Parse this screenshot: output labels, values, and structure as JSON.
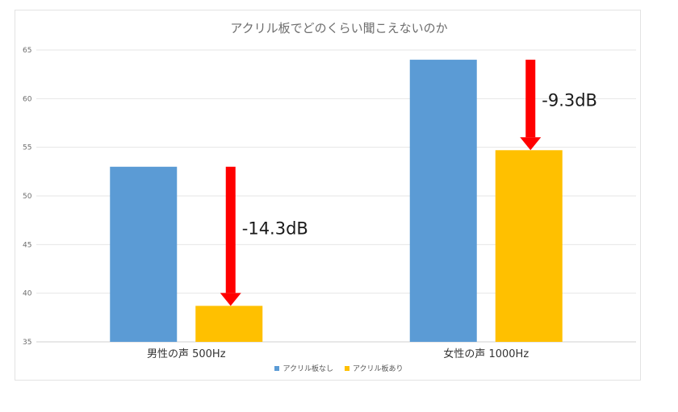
{
  "chart_data": {
    "type": "bar",
    "title": "アクリル板でどのくらい聞こえないのか",
    "categories": [
      "男性の声 500Hz",
      "女性の声 1000Hz"
    ],
    "series": [
      {
        "name": "アクリル板なし",
        "values": [
          53.0,
          64.0
        ],
        "color": "#5b9bd5"
      },
      {
        "name": "アクリル板あり",
        "values": [
          38.7,
          54.7
        ],
        "color": "#ffc000"
      }
    ],
    "yticks": [
      35,
      40,
      45,
      50,
      55,
      60,
      65
    ],
    "ylim": [
      35,
      65
    ],
    "grid": true,
    "legend_position": "bottom",
    "annotations": [
      {
        "category": "男性の声 500Hz",
        "text": "-14.3dB",
        "from": 53.0,
        "to": 38.7,
        "color": "#ff0000"
      },
      {
        "category": "女性の声 1000Hz",
        "text": "-9.3dB",
        "from": 64.0,
        "to": 54.7,
        "color": "#ff0000"
      }
    ]
  }
}
